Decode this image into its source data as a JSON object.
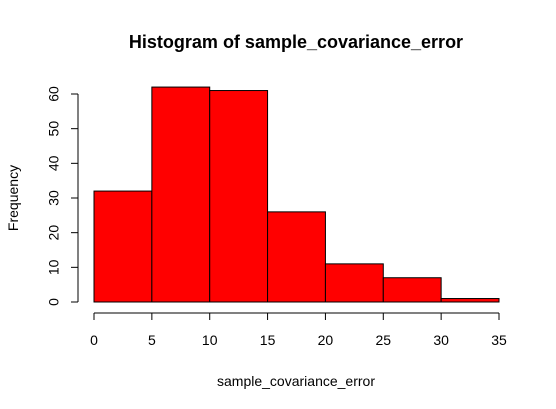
{
  "chart_data": {
    "type": "bar",
    "title": "Histogram of sample_covariance_error",
    "xlabel": "sample_covariance_error",
    "ylabel": "Frequency",
    "bins": [
      {
        "start": 0,
        "end": 5,
        "count": 32
      },
      {
        "start": 5,
        "end": 10,
        "count": 62
      },
      {
        "start": 10,
        "end": 15,
        "count": 61
      },
      {
        "start": 15,
        "end": 20,
        "count": 26
      },
      {
        "start": 20,
        "end": 25,
        "count": 11
      },
      {
        "start": 25,
        "end": 30,
        "count": 7
      },
      {
        "start": 30,
        "end": 35,
        "count": 1
      }
    ],
    "xticks": [
      "0",
      "5",
      "10",
      "15",
      "20",
      "25",
      "30",
      "35"
    ],
    "yticks": [
      "0",
      "10",
      "20",
      "30",
      "40",
      "50",
      "60"
    ],
    "xlim": [
      0,
      35
    ],
    "ylim": [
      0,
      60
    ],
    "grid": false,
    "legend": "none",
    "bar_color": "#ff0000",
    "edge_color": "#000000"
  }
}
